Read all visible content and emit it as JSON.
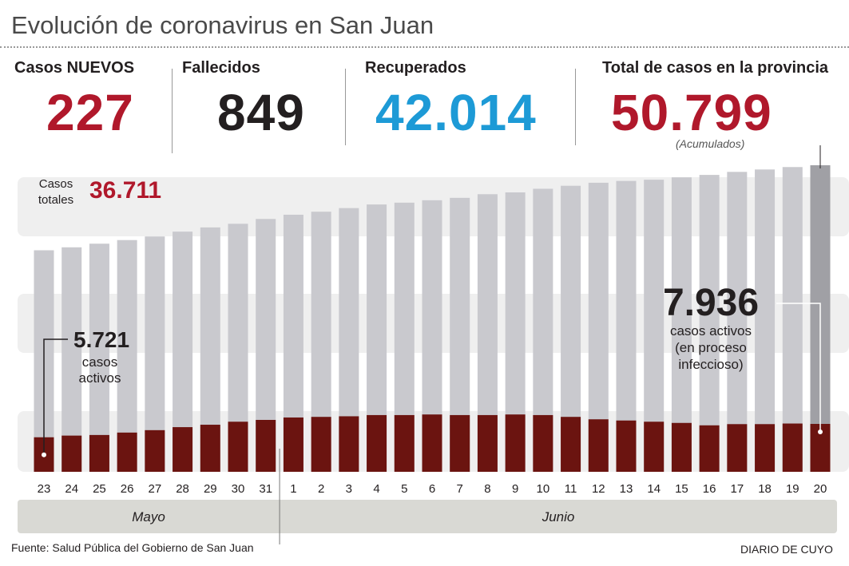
{
  "chart_data": {
    "type": "bar",
    "title": "Evolución de coronavirus en San Juan",
    "summary": [
      {
        "label": "Casos NUEVOS",
        "value": 227,
        "color": "#b0182b"
      },
      {
        "label": "Fallecidos",
        "value": 849,
        "color": "#231f20"
      },
      {
        "label": "Recuperados",
        "value": 42014,
        "value_label": "42.014",
        "color": "#1d9ad6"
      },
      {
        "label": "Total de casos en la provincia",
        "value": 50799,
        "value_label": "50.799",
        "note": "(Acumulados)",
        "color": "#b0182b"
      }
    ],
    "categories": [
      "23",
      "24",
      "25",
      "26",
      "27",
      "28",
      "29",
      "30",
      "31",
      "1",
      "2",
      "3",
      "4",
      "5",
      "6",
      "7",
      "8",
      "9",
      "10",
      "11",
      "12",
      "13",
      "14",
      "15",
      "16",
      "17",
      "18",
      "19",
      "20"
    ],
    "months": [
      "Mayo",
      "Junio"
    ],
    "series": [
      {
        "name": "Casos totales",
        "color": "#c9c9ce",
        "highlight_color": "#a0a0a5",
        "values": [
          36711,
          37200,
          37800,
          38400,
          39000,
          39800,
          40500,
          41100,
          41900,
          42600,
          43100,
          43700,
          44300,
          44600,
          45000,
          45400,
          46000,
          46300,
          46900,
          47400,
          47900,
          48200,
          48400,
          48800,
          49200,
          49700,
          50100,
          50500,
          50799
        ],
        "value_labels": [
          "36.711",
          null,
          null,
          null,
          null,
          null,
          null,
          null,
          null,
          null,
          null,
          null,
          null,
          null,
          null,
          null,
          null,
          null,
          null,
          null,
          null,
          null,
          null,
          null,
          null,
          null,
          null,
          null,
          null
        ]
      },
      {
        "name": "casos activos",
        "color": "#6b1410",
        "values": [
          5721,
          6000,
          6100,
          6500,
          6900,
          7400,
          7800,
          8300,
          8600,
          9000,
          9100,
          9200,
          9400,
          9400,
          9500,
          9400,
          9400,
          9500,
          9400,
          9100,
          8700,
          8500,
          8300,
          8100,
          7700,
          7900,
          7900,
          8000,
          7936
        ],
        "value_labels": [
          "5.721",
          null,
          null,
          null,
          null,
          null,
          null,
          null,
          null,
          null,
          null,
          null,
          null,
          null,
          null,
          null,
          null,
          null,
          null,
          null,
          null,
          null,
          null,
          null,
          null,
          null,
          null,
          null,
          "7.936"
        ]
      }
    ],
    "annotation": "(en proceso infeccioso)",
    "source": "Fuente: Salud Pública del Gobierno de San Juan",
    "credit": "DIARIO DE CUYO"
  }
}
